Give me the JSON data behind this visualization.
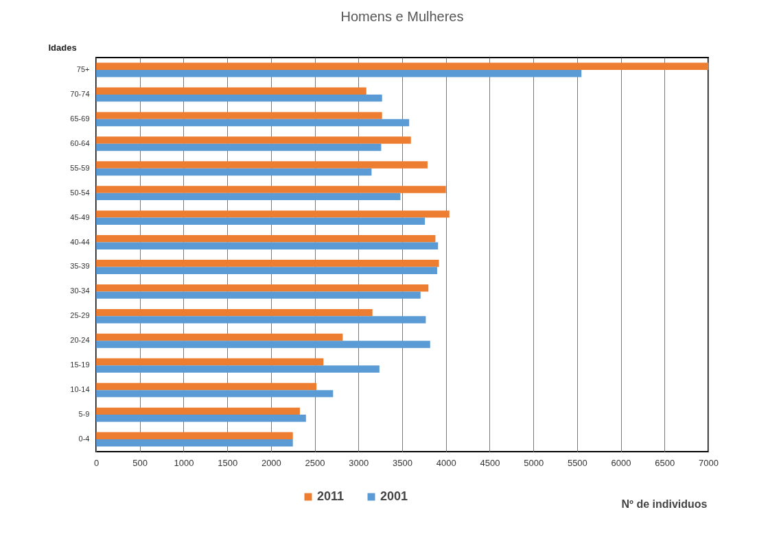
{
  "chart_data": {
    "type": "bar",
    "orientation": "horizontal",
    "title": "Homens e Mulheres",
    "xlabel": "Nº de individuos",
    "ylabel": "Idades",
    "categories": [
      "75+",
      "70-74",
      "65-69",
      "60-64",
      "55-59",
      "50-54",
      "45-49",
      "40-44",
      "35-39",
      "30-34",
      "25-29",
      "20-24",
      "15-19",
      "10-14",
      "5-9",
      "0-4"
    ],
    "series": [
      {
        "name": "2011",
        "color": "#ed7d31",
        "values": [
          7000,
          3090,
          3270,
          3600,
          3790,
          4000,
          4040,
          3880,
          3920,
          3800,
          3160,
          2820,
          2600,
          2520,
          2330,
          2250
        ]
      },
      {
        "name": "2001",
        "color": "#5b9bd5",
        "values": [
          5550,
          3270,
          3580,
          3260,
          3150,
          3480,
          3760,
          3910,
          3900,
          3710,
          3770,
          3820,
          3240,
          2710,
          2400,
          2250
        ]
      }
    ],
    "xlim": [
      0,
      7000
    ],
    "xticks": [
      0,
      500,
      1000,
      1500,
      2000,
      2500,
      3000,
      3500,
      4000,
      4500,
      5000,
      5500,
      6000,
      6500,
      7000
    ],
    "grid": "x",
    "legend": "bottom"
  }
}
